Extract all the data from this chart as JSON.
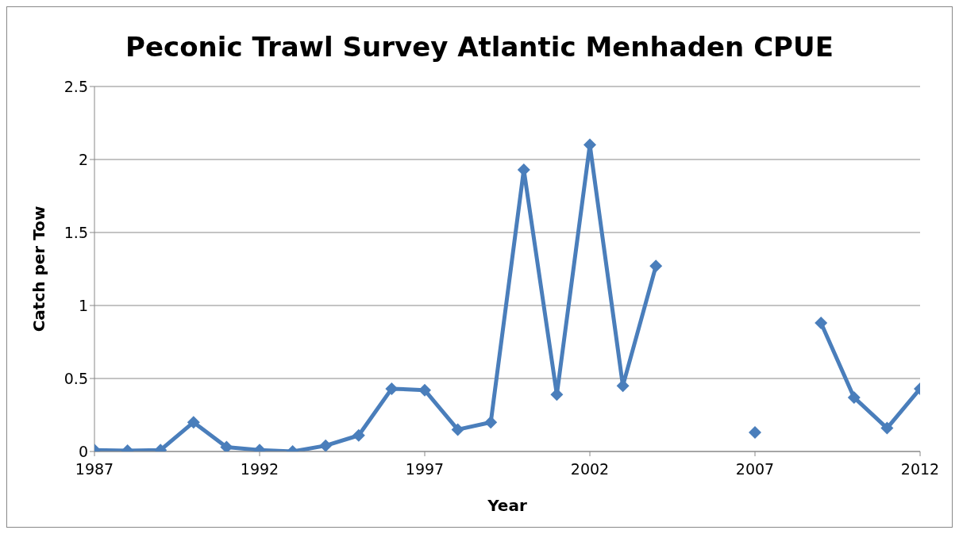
{
  "chart_data": {
    "type": "line",
    "title": "Peconic Trawl Survey Atlantic Menhaden CPUE",
    "xlabel": "Year",
    "ylabel": "Catch per Tow",
    "x": [
      1987,
      1988,
      1989,
      1990,
      1991,
      1992,
      1993,
      1994,
      1995,
      1996,
      1997,
      1998,
      1999,
      2000,
      2001,
      2002,
      2003,
      2004,
      2005,
      2006,
      2007,
      2008,
      2009,
      2010,
      2011,
      2012
    ],
    "series": [
      {
        "color": "#4a7ebb",
        "values": [
          0.01,
          0.005,
          0.01,
          0.2,
          0.03,
          0.01,
          0,
          0.04,
          0.11,
          0.43,
          0.42,
          0.15,
          0.2,
          1.93,
          0.39,
          2.1,
          0.45,
          1.27,
          null,
          null,
          0.13,
          null,
          0.88,
          0.37,
          0.16,
          0.43
        ]
      }
    ],
    "xlim": [
      1987,
      2012
    ],
    "xticks": [
      1987,
      1992,
      1997,
      2002,
      2007,
      2012
    ],
    "ylim": [
      0,
      2.5
    ],
    "yticks": [
      0,
      0.5,
      1,
      1.5,
      2,
      2.5
    ],
    "grid": "y",
    "legend": false,
    "marker": "diamond",
    "line_style": "solid"
  }
}
